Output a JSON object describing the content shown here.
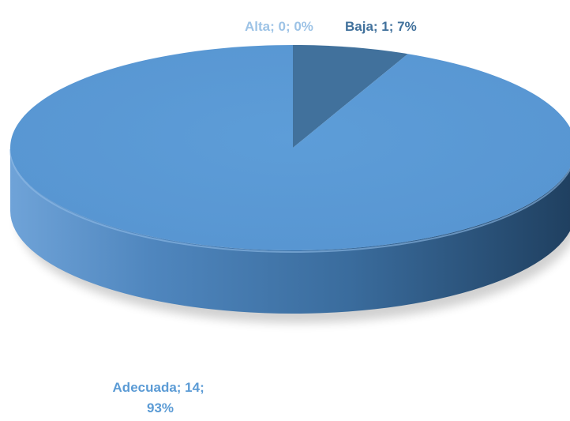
{
  "chart_data": {
    "type": "pie",
    "style": "3d",
    "categories": [
      "Alta",
      "Baja",
      "Adecuada"
    ],
    "values": [
      0,
      1,
      14
    ],
    "percentages": [
      "0%",
      "7%",
      "93%"
    ],
    "labels": [
      {
        "category": "Alta",
        "lines": [
          "Alta; 0; 0%"
        ]
      },
      {
        "category": "Baja",
        "lines": [
          "Baja; 1; 7%"
        ]
      },
      {
        "category": "Adecuada",
        "lines": [
          "Adecuada; 14;",
          "93%"
        ]
      }
    ],
    "colors": {
      "Alta": "#9dc3e6",
      "Baja": "#41719c",
      "Adecuada": "#5b9bd5",
      "side": "#3d6f9f",
      "label_light": "#9dc3e6",
      "label_dark": "#41719c"
    },
    "legend": false
  }
}
